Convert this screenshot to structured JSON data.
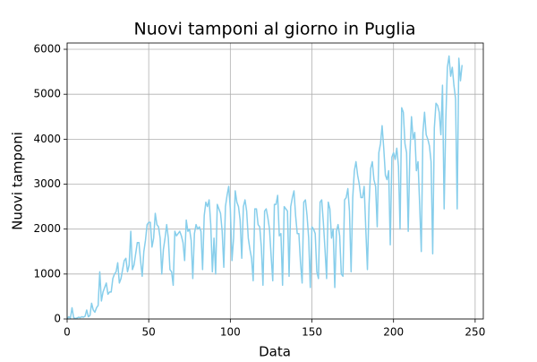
{
  "chart_data": {
    "type": "line",
    "title": "Nuovi tamponi al giorno in Puglia",
    "x_label": "Data",
    "y_label": "Nuovi tamponi",
    "color": "#87ceeb",
    "grid": true,
    "xlim": [
      0,
      255
    ],
    "xticks": [
      0,
      50,
      100,
      150,
      200,
      250
    ],
    "ylim": [
      0,
      6140
    ],
    "yticks": [
      0,
      1000,
      2000,
      3000,
      4000,
      5000,
      6000
    ],
    "x": [
      0,
      1,
      2,
      3,
      4,
      5,
      6,
      7,
      8,
      9,
      10,
      11,
      12,
      13,
      14,
      15,
      16,
      17,
      18,
      19,
      20,
      21,
      22,
      23,
      24,
      25,
      26,
      27,
      28,
      29,
      30,
      31,
      32,
      33,
      34,
      35,
      36,
      37,
      38,
      39,
      40,
      41,
      42,
      43,
      44,
      45,
      46,
      47,
      48,
      49,
      50,
      51,
      52,
      53,
      54,
      55,
      56,
      57,
      58,
      59,
      60,
      61,
      62,
      63,
      64,
      65,
      66,
      67,
      68,
      69,
      70,
      71,
      72,
      73,
      74,
      75,
      76,
      77,
      78,
      79,
      80,
      81,
      82,
      83,
      84,
      85,
      86,
      87,
      88,
      89,
      90,
      91,
      92,
      93,
      94,
      95,
      96,
      97,
      98,
      99,
      100,
      101,
      102,
      103,
      104,
      105,
      106,
      107,
      108,
      109,
      110,
      111,
      112,
      113,
      114,
      115,
      116,
      117,
      118,
      119,
      120,
      121,
      122,
      123,
      124,
      125,
      126,
      127,
      128,
      129,
      130,
      131,
      132,
      133,
      134,
      135,
      136,
      137,
      138,
      139,
      140,
      141,
      142,
      143,
      144,
      145,
      146,
      147,
      148,
      149,
      150,
      151,
      152,
      153,
      154,
      155,
      156,
      157,
      158,
      159,
      160,
      161,
      162,
      163,
      164,
      165,
      166,
      167,
      168,
      169,
      170,
      171,
      172,
      173,
      174,
      175,
      176,
      177,
      178,
      179,
      180,
      181,
      182,
      183,
      184,
      185,
      186,
      187,
      188,
      189,
      190,
      191,
      192,
      193,
      194,
      195,
      196,
      197,
      198,
      199,
      200,
      201,
      202,
      203,
      204,
      205,
      206,
      207,
      208,
      209,
      210,
      211,
      212,
      213,
      214,
      215,
      216,
      217,
      218,
      219,
      220,
      221,
      222,
      223,
      224,
      225,
      226,
      227,
      228,
      229,
      230,
      231,
      232,
      233,
      234,
      235,
      236,
      237,
      238,
      239,
      240,
      241,
      242
    ],
    "values": [
      0,
      50,
      20,
      250,
      30,
      10,
      20,
      40,
      30,
      50,
      40,
      60,
      200,
      50,
      80,
      350,
      200,
      150,
      250,
      300,
      1050,
      400,
      600,
      700,
      800,
      550,
      600,
      600,
      900,
      1000,
      1050,
      1250,
      800,
      900,
      1100,
      1300,
      1350,
      1050,
      1200,
      1950,
      1100,
      1200,
      1450,
      1700,
      1700,
      1300,
      950,
      1500,
      1750,
      2100,
      2150,
      2150,
      1600,
      1800,
      2350,
      2100,
      2050,
      1800,
      1000,
      1550,
      1800,
      2100,
      1800,
      1100,
      1050,
      750,
      1950,
      1850,
      1900,
      1950,
      1850,
      1700,
      1300,
      2200,
      1950,
      2000,
      1750,
      900,
      1900,
      2100,
      2000,
      2050,
      1950,
      1100,
      2300,
      2600,
      2500,
      2650,
      2100,
      1050,
      1800,
      1000,
      2550,
      2450,
      2350,
      1950,
      1150,
      2500,
      2750,
      2950,
      2450,
      1300,
      1800,
      2850,
      2600,
      2500,
      2200,
      1350,
      2500,
      2650,
      2400,
      1800,
      1550,
      1350,
      850,
      2450,
      2450,
      2100,
      2050,
      1600,
      750,
      2400,
      2450,
      2250,
      2000,
      1400,
      850,
      2550,
      2550,
      2750,
      1850,
      1900,
      750,
      2500,
      2450,
      2400,
      950,
      2500,
      2700,
      2850,
      2300,
      1900,
      1900,
      1250,
      800,
      2600,
      2650,
      2300,
      1800,
      700,
      2050,
      2000,
      1900,
      1050,
      900,
      2600,
      2650,
      2150,
      1550,
      900,
      2600,
      2450,
      1800,
      2000,
      700,
      1950,
      2100,
      1850,
      1000,
      950,
      2650,
      2700,
      2900,
      2400,
      1050,
      2700,
      3300,
      3500,
      3200,
      3000,
      2700,
      2700,
      2950,
      2000,
      1100,
      2550,
      3350,
      3500,
      3100,
      2950,
      2050,
      3700,
      3900,
      4300,
      3800,
      3200,
      3100,
      3300,
      1650,
      3600,
      3700,
      3550,
      3800,
      3400,
      2000,
      4700,
      4600,
      3900,
      3700,
      1950,
      3650,
      4500,
      4000,
      4150,
      3300,
      3500,
      2550,
      1500,
      4150,
      4600,
      4100,
      4000,
      3850,
      3500,
      1450,
      4250,
      4800,
      4750,
      4600,
      4100,
      5200,
      2450,
      4400,
      5600,
      5850,
      5400,
      5600,
      5200,
      4900,
      2450,
      5800,
      5300,
      5650
    ]
  }
}
